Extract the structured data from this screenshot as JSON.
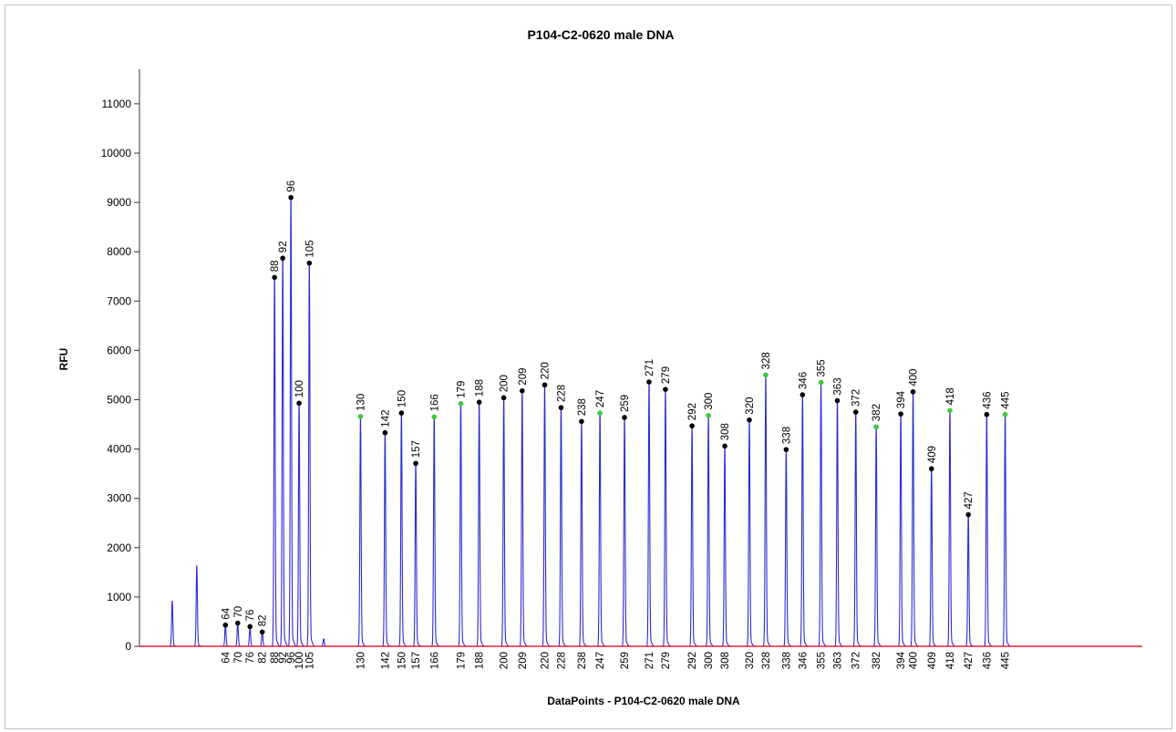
{
  "chart_data": {
    "type": "line",
    "title": "P104-C2-0620 male DNA",
    "xlabel": "DataPoints - P104-C2-0620 male DNA",
    "ylabel": "RFU",
    "ylim": [
      0,
      11700
    ],
    "yticks": [
      0,
      1000,
      2000,
      3000,
      4000,
      5000,
      6000,
      7000,
      8000,
      9000,
      10000,
      11000
    ],
    "grid": false,
    "colors": {
      "trace": "#2b2bd4",
      "baseline": "#e0203c",
      "peak_dot": "#000000",
      "peak_dot_green": "#3cc83c"
    },
    "unlabeled_peaks": [
      {
        "x": 38,
        "y": 920
      },
      {
        "x": 50,
        "y": 1630
      },
      {
        "x": 112,
        "y": 150
      }
    ],
    "peaks": [
      {
        "label": "64",
        "x": 64,
        "y": 430,
        "marker": "black"
      },
      {
        "label": "70",
        "x": 70,
        "y": 470,
        "marker": "black"
      },
      {
        "label": "76",
        "x": 76,
        "y": 400,
        "marker": "black"
      },
      {
        "label": "82",
        "x": 82,
        "y": 290,
        "marker": "black"
      },
      {
        "label": "88",
        "x": 88,
        "y": 7480,
        "marker": "black"
      },
      {
        "label": "92",
        "x": 92,
        "y": 7870,
        "marker": "black"
      },
      {
        "label": "96",
        "x": 96,
        "y": 9100,
        "marker": "black"
      },
      {
        "label": "100",
        "x": 100,
        "y": 4930,
        "marker": "black"
      },
      {
        "label": "105",
        "x": 105,
        "y": 7770,
        "marker": "black"
      },
      {
        "label": "130",
        "x": 130,
        "y": 4660,
        "marker": "green"
      },
      {
        "label": "142",
        "x": 142,
        "y": 4330,
        "marker": "black"
      },
      {
        "label": "150",
        "x": 150,
        "y": 4730,
        "marker": "black"
      },
      {
        "label": "157",
        "x": 157,
        "y": 3710,
        "marker": "black"
      },
      {
        "label": "166",
        "x": 166,
        "y": 4650,
        "marker": "green"
      },
      {
        "label": "179",
        "x": 179,
        "y": 4920,
        "marker": "green"
      },
      {
        "label": "188",
        "x": 188,
        "y": 4950,
        "marker": "black"
      },
      {
        "label": "200",
        "x": 200,
        "y": 5040,
        "marker": "black"
      },
      {
        "label": "209",
        "x": 209,
        "y": 5180,
        "marker": "black"
      },
      {
        "label": "220",
        "x": 220,
        "y": 5300,
        "marker": "black"
      },
      {
        "label": "228",
        "x": 228,
        "y": 4840,
        "marker": "black"
      },
      {
        "label": "238",
        "x": 238,
        "y": 4560,
        "marker": "black"
      },
      {
        "label": "247",
        "x": 247,
        "y": 4730,
        "marker": "green"
      },
      {
        "label": "259",
        "x": 259,
        "y": 4640,
        "marker": "black"
      },
      {
        "label": "271",
        "x": 271,
        "y": 5360,
        "marker": "black"
      },
      {
        "label": "279",
        "x": 279,
        "y": 5210,
        "marker": "black"
      },
      {
        "label": "292",
        "x": 292,
        "y": 4470,
        "marker": "black"
      },
      {
        "label": "300",
        "x": 300,
        "y": 4680,
        "marker": "green"
      },
      {
        "label": "308",
        "x": 308,
        "y": 4060,
        "marker": "black"
      },
      {
        "label": "320",
        "x": 320,
        "y": 4590,
        "marker": "black"
      },
      {
        "label": "328",
        "x": 328,
        "y": 5500,
        "marker": "green"
      },
      {
        "label": "338",
        "x": 338,
        "y": 3990,
        "marker": "black"
      },
      {
        "label": "346",
        "x": 346,
        "y": 5100,
        "marker": "black"
      },
      {
        "label": "355",
        "x": 355,
        "y": 5350,
        "marker": "green"
      },
      {
        "label": "363",
        "x": 363,
        "y": 4980,
        "marker": "black"
      },
      {
        "label": "372",
        "x": 372,
        "y": 4750,
        "marker": "black"
      },
      {
        "label": "382",
        "x": 382,
        "y": 4450,
        "marker": "green"
      },
      {
        "label": "394",
        "x": 394,
        "y": 4710,
        "marker": "black"
      },
      {
        "label": "400",
        "x": 400,
        "y": 5160,
        "marker": "black"
      },
      {
        "label": "409",
        "x": 409,
        "y": 3600,
        "marker": "black"
      },
      {
        "label": "418",
        "x": 418,
        "y": 4780,
        "marker": "green"
      },
      {
        "label": "427",
        "x": 427,
        "y": 2670,
        "marker": "black"
      },
      {
        "label": "436",
        "x": 436,
        "y": 4700,
        "marker": "black"
      },
      {
        "label": "445",
        "x": 445,
        "y": 4700,
        "marker": "green"
      }
    ]
  }
}
